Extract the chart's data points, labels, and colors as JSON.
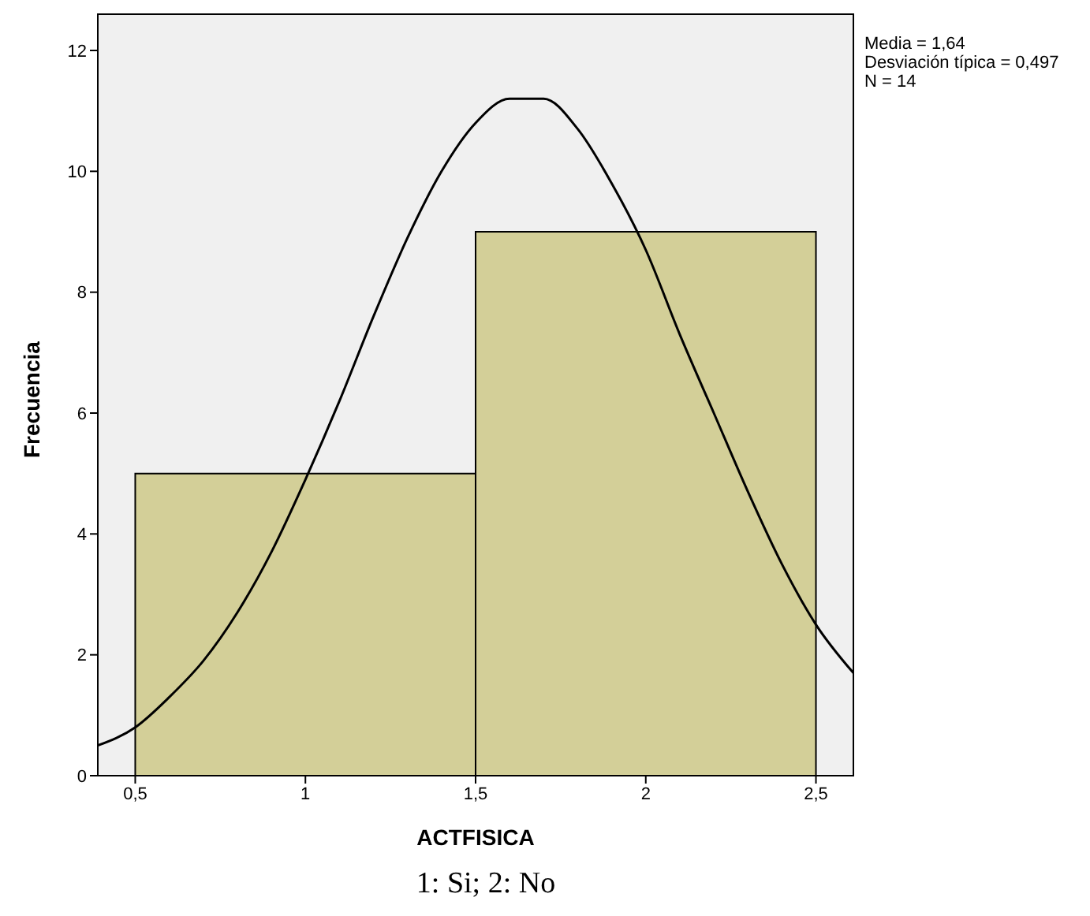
{
  "chart_data": {
    "type": "histogram",
    "xlabel": "ACTFISICA",
    "ylabel": "Frecuencia",
    "bins": [
      0.5,
      1.5,
      2.5
    ],
    "values": [
      5,
      9
    ],
    "color": "#d3cf98",
    "series": [
      {
        "type": "line",
        "color": "#000000",
        "x": [
          0.39,
          0.5,
          0.6,
          0.7,
          0.8,
          0.9,
          1.0,
          1.1,
          1.2,
          1.3,
          1.4,
          1.5,
          1.6,
          1.64,
          1.7,
          1.8,
          1.9,
          2.0,
          2.1,
          2.2,
          2.3,
          2.4,
          2.5,
          2.61
        ],
        "values": [
          0.5,
          0.8,
          1.3,
          1.9,
          2.7,
          3.7,
          4.9,
          6.2,
          7.6,
          8.9,
          10.0,
          10.8,
          11.2,
          11.2,
          11.2,
          10.7,
          9.8,
          8.7,
          7.3,
          6.0,
          4.7,
          3.5,
          2.5,
          1.7
        ]
      }
    ],
    "xlim": [
      0.39,
      2.61
    ],
    "xticks": [
      {
        "value": 0.5,
        "label": "0,5"
      },
      1,
      {
        "value": 1.5,
        "label": "1,5"
      },
      2,
      {
        "value": 2.5,
        "label": "2,5"
      }
    ],
    "ylim": [
      0,
      12.6
    ],
    "yticks": [
      0,
      2,
      4,
      6,
      8,
      10,
      12
    ],
    "marker": "none",
    "grid": false,
    "annotations": [
      "Media = 1,64",
      "Desviación típica = 0,497",
      "N = 14",
      "1: Si; 2: No"
    ]
  }
}
